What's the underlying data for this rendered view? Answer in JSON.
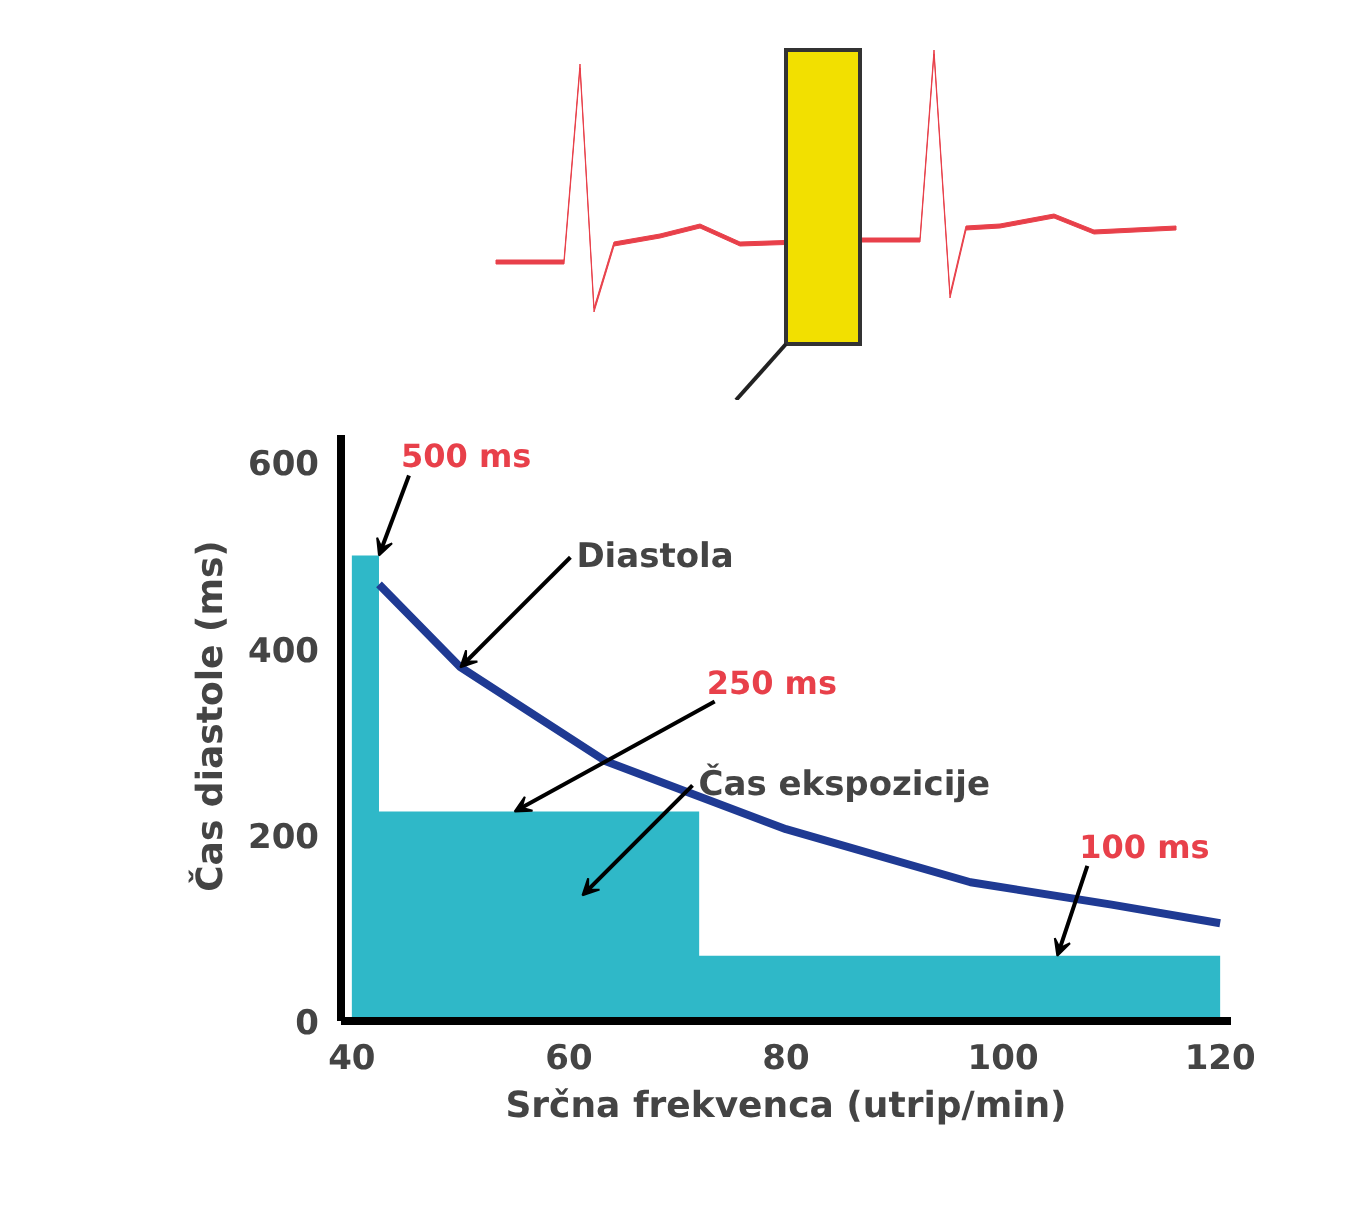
{
  "chart_data": {
    "type": "line",
    "xlabel": "Srčna frekvenca (utrip/min)",
    "ylabel": "Čas diastole (ms)",
    "xlim": [
      39,
      121
    ],
    "ylim": [
      0,
      630
    ],
    "xticks": [
      40,
      60,
      80,
      100,
      120
    ],
    "yticks": [
      0,
      200,
      400,
      600
    ],
    "grid": false,
    "legend": false,
    "series": [
      {
        "name": "Čas ekspozicije",
        "type": "area",
        "color": "#2fb8c8",
        "x": [
          40,
          42.5,
          42.5,
          72,
          72,
          120
        ],
        "values": [
          500,
          500,
          225,
          225,
          70,
          70
        ]
      },
      {
        "name": "Diastola",
        "color": "#1f3a93",
        "x": [
          42.5,
          50,
          63.4,
          80,
          97,
          110,
          120
        ],
        "values": [
          469,
          380,
          279,
          206,
          149,
          125,
          105
        ]
      }
    ],
    "annotations": [
      {
        "text": "500 ms",
        "x": 42.5,
        "y": 500
      },
      {
        "text": "250 ms",
        "x": 55,
        "y": 225
      },
      {
        "text": "100 ms",
        "x": 105,
        "y": 70
      }
    ]
  }
}
